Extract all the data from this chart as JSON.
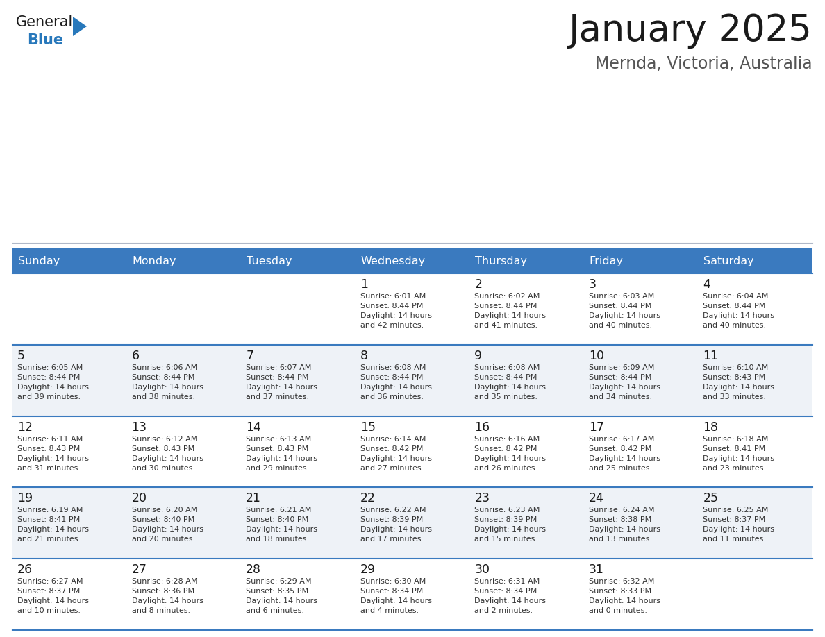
{
  "title": "January 2025",
  "subtitle": "Mernda, Victoria, Australia",
  "header_bg_color": "#3a7abf",
  "header_text_color": "#ffffff",
  "weekdays": [
    "Sunday",
    "Monday",
    "Tuesday",
    "Wednesday",
    "Thursday",
    "Friday",
    "Saturday"
  ],
  "bg_color": "#ffffff",
  "cell_bg_even": "#ffffff",
  "cell_bg_odd": "#eef2f7",
  "cell_border_color": "#3a7abf",
  "day_number_color": "#1a1a1a",
  "cell_text_color": "#333333",
  "title_color": "#1a1a1a",
  "subtitle_color": "#555555",
  "logo_general_color": "#1a1a1a",
  "logo_blue_color": "#2878bb",
  "weeks": [
    [
      {
        "day": null,
        "info": null
      },
      {
        "day": null,
        "info": null
      },
      {
        "day": null,
        "info": null
      },
      {
        "day": 1,
        "info": "Sunrise: 6:01 AM\nSunset: 8:44 PM\nDaylight: 14 hours\nand 42 minutes."
      },
      {
        "day": 2,
        "info": "Sunrise: 6:02 AM\nSunset: 8:44 PM\nDaylight: 14 hours\nand 41 minutes."
      },
      {
        "day": 3,
        "info": "Sunrise: 6:03 AM\nSunset: 8:44 PM\nDaylight: 14 hours\nand 40 minutes."
      },
      {
        "day": 4,
        "info": "Sunrise: 6:04 AM\nSunset: 8:44 PM\nDaylight: 14 hours\nand 40 minutes."
      }
    ],
    [
      {
        "day": 5,
        "info": "Sunrise: 6:05 AM\nSunset: 8:44 PM\nDaylight: 14 hours\nand 39 minutes."
      },
      {
        "day": 6,
        "info": "Sunrise: 6:06 AM\nSunset: 8:44 PM\nDaylight: 14 hours\nand 38 minutes."
      },
      {
        "day": 7,
        "info": "Sunrise: 6:07 AM\nSunset: 8:44 PM\nDaylight: 14 hours\nand 37 minutes."
      },
      {
        "day": 8,
        "info": "Sunrise: 6:08 AM\nSunset: 8:44 PM\nDaylight: 14 hours\nand 36 minutes."
      },
      {
        "day": 9,
        "info": "Sunrise: 6:08 AM\nSunset: 8:44 PM\nDaylight: 14 hours\nand 35 minutes."
      },
      {
        "day": 10,
        "info": "Sunrise: 6:09 AM\nSunset: 8:44 PM\nDaylight: 14 hours\nand 34 minutes."
      },
      {
        "day": 11,
        "info": "Sunrise: 6:10 AM\nSunset: 8:43 PM\nDaylight: 14 hours\nand 33 minutes."
      }
    ],
    [
      {
        "day": 12,
        "info": "Sunrise: 6:11 AM\nSunset: 8:43 PM\nDaylight: 14 hours\nand 31 minutes."
      },
      {
        "day": 13,
        "info": "Sunrise: 6:12 AM\nSunset: 8:43 PM\nDaylight: 14 hours\nand 30 minutes."
      },
      {
        "day": 14,
        "info": "Sunrise: 6:13 AM\nSunset: 8:43 PM\nDaylight: 14 hours\nand 29 minutes."
      },
      {
        "day": 15,
        "info": "Sunrise: 6:14 AM\nSunset: 8:42 PM\nDaylight: 14 hours\nand 27 minutes."
      },
      {
        "day": 16,
        "info": "Sunrise: 6:16 AM\nSunset: 8:42 PM\nDaylight: 14 hours\nand 26 minutes."
      },
      {
        "day": 17,
        "info": "Sunrise: 6:17 AM\nSunset: 8:42 PM\nDaylight: 14 hours\nand 25 minutes."
      },
      {
        "day": 18,
        "info": "Sunrise: 6:18 AM\nSunset: 8:41 PM\nDaylight: 14 hours\nand 23 minutes."
      }
    ],
    [
      {
        "day": 19,
        "info": "Sunrise: 6:19 AM\nSunset: 8:41 PM\nDaylight: 14 hours\nand 21 minutes."
      },
      {
        "day": 20,
        "info": "Sunrise: 6:20 AM\nSunset: 8:40 PM\nDaylight: 14 hours\nand 20 minutes."
      },
      {
        "day": 21,
        "info": "Sunrise: 6:21 AM\nSunset: 8:40 PM\nDaylight: 14 hours\nand 18 minutes."
      },
      {
        "day": 22,
        "info": "Sunrise: 6:22 AM\nSunset: 8:39 PM\nDaylight: 14 hours\nand 17 minutes."
      },
      {
        "day": 23,
        "info": "Sunrise: 6:23 AM\nSunset: 8:39 PM\nDaylight: 14 hours\nand 15 minutes."
      },
      {
        "day": 24,
        "info": "Sunrise: 6:24 AM\nSunset: 8:38 PM\nDaylight: 14 hours\nand 13 minutes."
      },
      {
        "day": 25,
        "info": "Sunrise: 6:25 AM\nSunset: 8:37 PM\nDaylight: 14 hours\nand 11 minutes."
      }
    ],
    [
      {
        "day": 26,
        "info": "Sunrise: 6:27 AM\nSunset: 8:37 PM\nDaylight: 14 hours\nand 10 minutes."
      },
      {
        "day": 27,
        "info": "Sunrise: 6:28 AM\nSunset: 8:36 PM\nDaylight: 14 hours\nand 8 minutes."
      },
      {
        "day": 28,
        "info": "Sunrise: 6:29 AM\nSunset: 8:35 PM\nDaylight: 14 hours\nand 6 minutes."
      },
      {
        "day": 29,
        "info": "Sunrise: 6:30 AM\nSunset: 8:34 PM\nDaylight: 14 hours\nand 4 minutes."
      },
      {
        "day": 30,
        "info": "Sunrise: 6:31 AM\nSunset: 8:34 PM\nDaylight: 14 hours\nand 2 minutes."
      },
      {
        "day": 31,
        "info": "Sunrise: 6:32 AM\nSunset: 8:33 PM\nDaylight: 14 hours\nand 0 minutes."
      },
      {
        "day": null,
        "info": null
      }
    ]
  ]
}
